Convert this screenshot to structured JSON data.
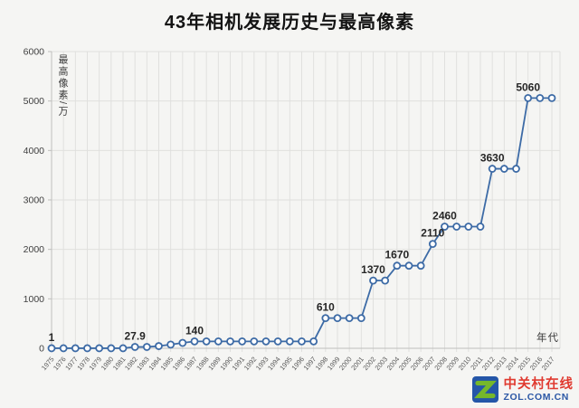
{
  "chart_data": {
    "type": "line",
    "title": "43年相机发展历史与最高像素",
    "xlabel": "年代",
    "ylabel": "最高像素/万",
    "ylim": [
      0,
      6000
    ],
    "ytick_step": 1000,
    "grid": true,
    "legend": "none",
    "line_color": "#3d6ba6",
    "marker_fill": "#ffffff",
    "gridline_color": "#e0e0de",
    "axis_color": "#bfbfbd",
    "tick_label_color": "#595959",
    "data_label_color": "#262626",
    "categories": [
      "1975",
      "1976",
      "1977",
      "1978",
      "1979",
      "1980",
      "1981",
      "1982",
      "1983",
      "1984",
      "1985",
      "1986",
      "1987",
      "1988",
      "1989",
      "1990",
      "1991",
      "1992",
      "1993",
      "1994",
      "1995",
      "1996",
      "1997",
      "1998",
      "1999",
      "2000",
      "2001",
      "2002",
      "2003",
      "2004",
      "2005",
      "2006",
      "2007",
      "2008",
      "2009",
      "2010",
      "2011",
      "2012",
      "2013",
      "2014",
      "2015",
      "2016",
      "2017"
    ],
    "values": [
      1,
      1,
      1,
      1,
      1,
      1,
      1,
      27.9,
      27.9,
      45,
      75,
      110,
      140,
      140,
      140,
      140,
      140,
      140,
      140,
      140,
      140,
      140,
      140,
      610,
      610,
      610,
      610,
      1370,
      1370,
      1670,
      1670,
      1670,
      2110,
      2460,
      2460,
      2460,
      2460,
      3630,
      3630,
      3630,
      5060,
      5060,
      5060
    ],
    "data_labels": [
      {
        "year": "1975",
        "label": "1"
      },
      {
        "year": "1982",
        "label": "27.9"
      },
      {
        "year": "1987",
        "label": "140"
      },
      {
        "year": "1998",
        "label": "610"
      },
      {
        "year": "2002",
        "label": "1370"
      },
      {
        "year": "2004",
        "label": "1670"
      },
      {
        "year": "2007",
        "label": "2110"
      },
      {
        "year": "2008",
        "label": "2460"
      },
      {
        "year": "2012",
        "label": "3630"
      },
      {
        "year": "2015",
        "label": "5060"
      }
    ]
  },
  "footer": {
    "logo": {
      "icon": "zol-logo",
      "site_name": "中关村在线",
      "site_url_text": "ZOL.COM.CN",
      "name_color": "#e03a30",
      "url_color": "#2b57a5",
      "icon_blue": "#2456a8",
      "icon_green": "#76b82a"
    }
  }
}
